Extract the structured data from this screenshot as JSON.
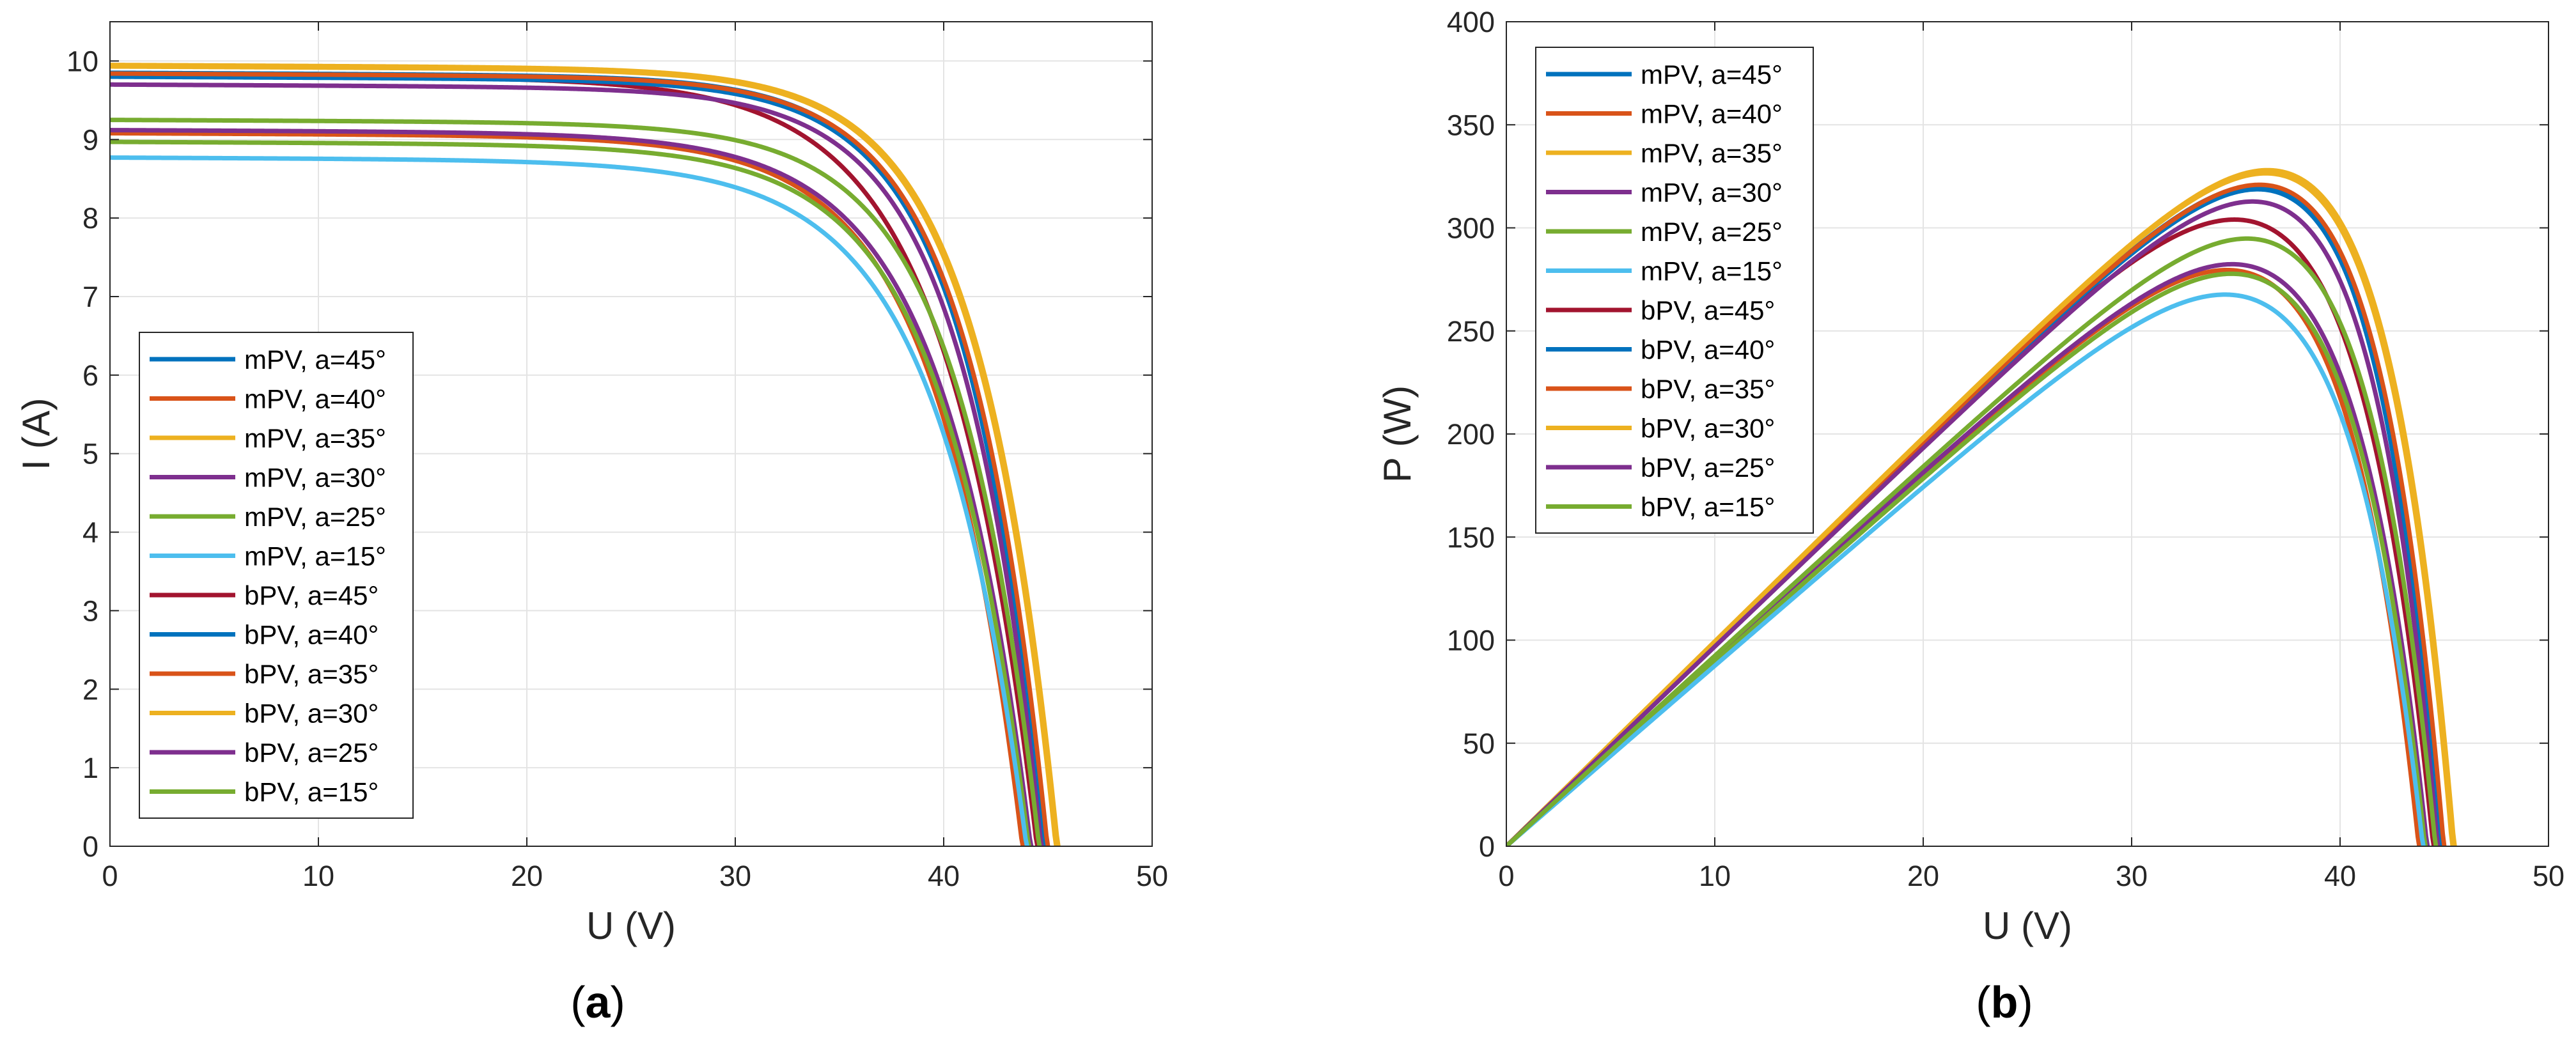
{
  "chart_data": [
    {
      "type": "line",
      "panel_label": "a",
      "xlabel": "U (V)",
      "ylabel": "I (A)",
      "xlim": [
        0,
        50
      ],
      "ylim": [
        0,
        10.5
      ],
      "xticks": [
        0,
        10,
        20,
        30,
        40,
        50
      ],
      "yticks": [
        0,
        1,
        2,
        3,
        4,
        5,
        6,
        7,
        8,
        9,
        10
      ],
      "grid": true,
      "legend_position": "lower-left",
      "series": [
        {
          "name": "mPV, a=45°",
          "color": "#0072BD",
          "isc": 9.85,
          "voc": 44.8,
          "knee": 36.7
        },
        {
          "name": "mPV, a=40°",
          "color": "#D95319",
          "isc": 9.08,
          "voc": 43.8,
          "knee": 34.8
        },
        {
          "name": "mPV, a=35°",
          "color": "#EDB120",
          "isc": 9.95,
          "voc": 45.5,
          "knee": 37.2
        },
        {
          "name": "mPV, a=30°",
          "color": "#7E2F8E",
          "isc": 9.12,
          "voc": 44.2,
          "knee": 35.0
        },
        {
          "name": "mPV, a=25°",
          "color": "#77AC30",
          "isc": 8.97,
          "voc": 44.1,
          "knee": 35.0
        },
        {
          "name": "mPV, a=15°",
          "color": "#4DBEEE",
          "isc": 8.77,
          "voc": 44.0,
          "knee": 34.5
        },
        {
          "name": "bPV, a=45°",
          "color": "#A2142F",
          "isc": 9.82,
          "voc": 44.5,
          "knee": 35.0
        },
        {
          "name": "bPV, a=40°",
          "color": "#0072BD",
          "isc": 9.8,
          "voc": 44.9,
          "knee": 36.7
        },
        {
          "name": "bPV, a=35°",
          "color": "#D95319",
          "isc": 9.84,
          "voc": 45.0,
          "knee": 36.8
        },
        {
          "name": "bPV, a=30°",
          "color": "#EDB120",
          "isc": 9.93,
          "voc": 45.4,
          "knee": 37.1
        },
        {
          "name": "bPV, a=25°",
          "color": "#7E2F8E",
          "isc": 9.7,
          "voc": 44.7,
          "knee": 36.4
        },
        {
          "name": "bPV, a=15°",
          "color": "#77AC30",
          "isc": 9.25,
          "voc": 44.6,
          "knee": 36.0
        }
      ]
    },
    {
      "type": "line",
      "panel_label": "b",
      "xlabel": "U (V)",
      "ylabel": "P (W)",
      "xlim": [
        0,
        50
      ],
      "ylim": [
        0,
        400
      ],
      "xticks": [
        0,
        10,
        20,
        30,
        40,
        50
      ],
      "yticks": [
        0,
        50,
        100,
        150,
        200,
        250,
        300,
        350,
        400
      ],
      "grid": true,
      "legend_position": "top-left",
      "series": [
        {
          "name": "mPV, a=45°",
          "color": "#0072BD",
          "isc": 9.85,
          "voc": 44.8,
          "knee": 36.7
        },
        {
          "name": "mPV, a=40°",
          "color": "#D95319",
          "isc": 9.08,
          "voc": 43.8,
          "knee": 34.8
        },
        {
          "name": "mPV, a=35°",
          "color": "#EDB120",
          "isc": 9.95,
          "voc": 45.5,
          "knee": 37.2
        },
        {
          "name": "mPV, a=30°",
          "color": "#7E2F8E",
          "isc": 9.12,
          "voc": 44.2,
          "knee": 35.0
        },
        {
          "name": "mPV, a=25°",
          "color": "#77AC30",
          "isc": 8.97,
          "voc": 44.1,
          "knee": 35.0
        },
        {
          "name": "mPV, a=15°",
          "color": "#4DBEEE",
          "isc": 8.77,
          "voc": 44.0,
          "knee": 34.5
        },
        {
          "name": "bPV, a=45°",
          "color": "#A2142F",
          "isc": 9.82,
          "voc": 44.5,
          "knee": 35.0
        },
        {
          "name": "bPV, a=40°",
          "color": "#0072BD",
          "isc": 9.8,
          "voc": 44.9,
          "knee": 36.7
        },
        {
          "name": "bPV, a=35°",
          "color": "#D95319",
          "isc": 9.84,
          "voc": 45.0,
          "knee": 36.8
        },
        {
          "name": "bPV, a=30°",
          "color": "#EDB120",
          "isc": 9.93,
          "voc": 45.4,
          "knee": 37.1
        },
        {
          "name": "bPV, a=25°",
          "color": "#7E2F8E",
          "isc": 9.7,
          "voc": 44.7,
          "knee": 36.4
        },
        {
          "name": "bPV, a=15°",
          "color": "#77AC30",
          "isc": 9.25,
          "voc": 44.6,
          "knee": 36.0
        }
      ]
    }
  ]
}
